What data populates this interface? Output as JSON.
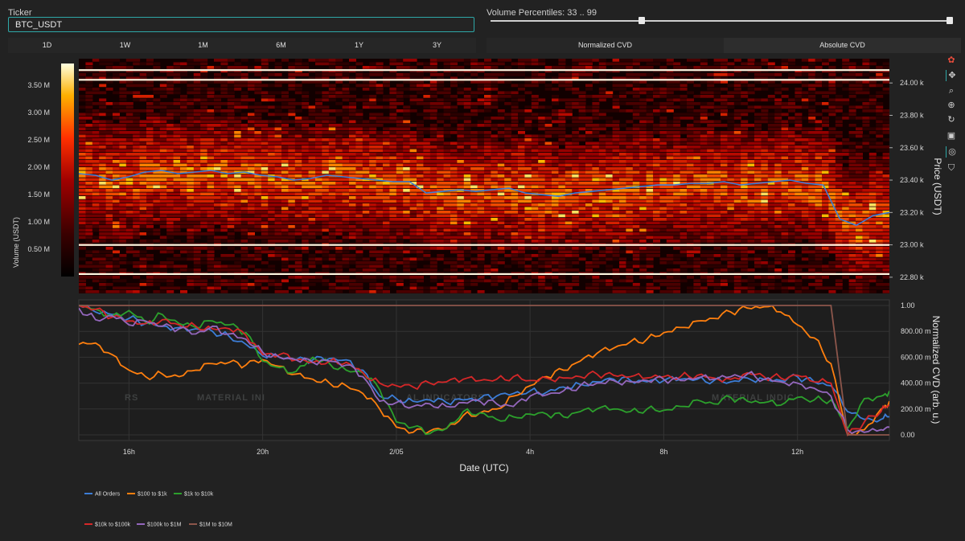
{
  "ticker": {
    "label": "Ticker",
    "value": "BTC_USDT"
  },
  "volume_percentiles": {
    "label": "Volume Percentiles: 33 .. 99",
    "low": 33,
    "high": 99
  },
  "timeframes": [
    "1D",
    "1W",
    "1M",
    "6M",
    "1Y",
    "3Y"
  ],
  "cvd_modes": [
    "Normalized CVD",
    "Absolute CVD"
  ],
  "toolbar": [
    "logo-icon",
    "pan-icon",
    "zoom-icon",
    "zoom-in-icon",
    "reset-icon",
    "download-icon",
    "hover-icon",
    "spike-icon"
  ],
  "watermark": [
    "RS",
    "MATERIAL INI",
    "AL INDICATORS",
    "MATERIAL INDIC"
  ],
  "chart_data": [
    {
      "type": "heatmap",
      "ylabel": "Price (USDT)",
      "colorbar_label": "Volume (USDT)",
      "colorbar_ticks": [
        "0.50 M",
        "1.00 M",
        "1.50 M",
        "2.00 M",
        "2.50 M",
        "3.00 M",
        "3.50 M"
      ],
      "colorbar_range": [
        0,
        3900000
      ],
      "ylim": [
        22700,
        24150
      ],
      "y_ticks": [
        22800,
        23000,
        23200,
        23400,
        23600,
        23800,
        24000
      ],
      "y_tick_labels": [
        "22.80 k",
        "23.00 k",
        "23.20 k",
        "23.40 k",
        "23.60 k",
        "23.80 k",
        "24.00 k"
      ],
      "price_line": {
        "color": "#3c7dd6",
        "x": [
          0,
          0.5,
          1,
          1.5,
          2,
          2.5,
          3,
          3.5,
          4,
          4.5,
          5,
          5.5,
          6,
          6.5,
          7,
          7.5,
          8,
          8.5,
          9,
          9.5,
          10,
          10.5,
          11,
          11.5,
          12,
          12.5,
          13,
          13.5,
          14,
          14.5,
          15,
          15.5,
          16,
          16.5,
          17,
          17.5,
          18,
          18.5,
          19,
          19.5,
          20,
          20.5,
          21,
          21.5,
          22,
          22.5,
          23,
          23.5,
          24,
          24.5
        ],
        "y": [
          23440,
          23430,
          23400,
          23420,
          23450,
          23460,
          23440,
          23450,
          23460,
          23440,
          23450,
          23430,
          23420,
          23400,
          23410,
          23430,
          23420,
          23410,
          23400,
          23390,
          23390,
          23320,
          23330,
          23340,
          23330,
          23340,
          23350,
          23320,
          23310,
          23300,
          23320,
          23330,
          23340,
          23350,
          23360,
          23370,
          23370,
          23380,
          23380,
          23390,
          23370,
          23380,
          23390,
          23400,
          23380,
          23370,
          23160,
          23120,
          23180,
          23200
        ]
      },
      "bright_levels": [
        22820,
        23000,
        24020,
        24080
      ]
    },
    {
      "type": "line",
      "xlabel": "Date (UTC)",
      "ylabel": "Normalized CVD (arb. u.)",
      "ylim": [
        0,
        1.0
      ],
      "y_ticks": [
        0,
        0.2,
        0.4,
        0.6,
        0.8,
        1.0
      ],
      "y_tick_labels": [
        "0.00",
        "200.00 m",
        "400.00 m",
        "600.00 m",
        "800.00 m",
        "1.00"
      ],
      "x_ticks": [
        1.5,
        5.5,
        9.5,
        13.5,
        17.5,
        21.5
      ],
      "x_tick_labels": [
        "16h",
        "20h",
        "2/05",
        "4h",
        "8h",
        "12h"
      ],
      "xlim": [
        0,
        24.25
      ],
      "x": [
        0,
        0.5,
        1,
        1.5,
        2,
        2.5,
        3,
        3.5,
        4,
        4.5,
        5,
        5.5,
        6,
        6.5,
        7,
        7.5,
        8,
        8.5,
        9,
        9.5,
        10,
        10.5,
        11,
        11.5,
        12,
        12.5,
        13,
        13.5,
        14,
        14.5,
        15,
        15.5,
        16,
        16.5,
        17,
        17.5,
        18,
        18.5,
        19,
        19.5,
        20,
        20.5,
        21,
        21.5,
        22,
        22.5,
        23,
        23.5,
        24,
        24.25
      ],
      "series": [
        {
          "name": "All Orders",
          "color": "#3c7dd6",
          "values": [
            1.0,
            0.95,
            0.93,
            0.9,
            0.86,
            0.84,
            0.83,
            0.82,
            0.8,
            0.76,
            0.7,
            0.61,
            0.6,
            0.58,
            0.58,
            0.59,
            0.58,
            0.5,
            0.3,
            0.28,
            0.26,
            0.27,
            0.25,
            0.27,
            0.28,
            0.3,
            0.32,
            0.34,
            0.33,
            0.37,
            0.39,
            0.41,
            0.43,
            0.42,
            0.41,
            0.42,
            0.43,
            0.43,
            0.42,
            0.41,
            0.44,
            0.43,
            0.42,
            0.45,
            0.41,
            0.38,
            0.18,
            0.12,
            0.12,
            0.14
          ]
        },
        {
          "name": "$100 to $1k",
          "color": "#ff7f0e",
          "values": [
            0.7,
            0.71,
            0.62,
            0.5,
            0.45,
            0.47,
            0.45,
            0.5,
            0.55,
            0.56,
            0.54,
            0.58,
            0.53,
            0.47,
            0.43,
            0.4,
            0.38,
            0.32,
            0.2,
            0.06,
            0.02,
            0.03,
            0.05,
            0.15,
            0.17,
            0.2,
            0.3,
            0.38,
            0.45,
            0.5,
            0.57,
            0.63,
            0.67,
            0.72,
            0.74,
            0.79,
            0.83,
            0.88,
            0.9,
            0.95,
            0.98,
            0.99,
            0.95,
            0.85,
            0.75,
            0.55,
            0.0,
            0.04,
            0.2,
            0.26
          ]
        },
        {
          "name": "$1k to $10k",
          "color": "#2ca02c",
          "values": [
            1.0,
            0.97,
            0.92,
            0.96,
            0.87,
            0.93,
            0.86,
            0.83,
            0.88,
            0.85,
            0.79,
            0.57,
            0.52,
            0.49,
            0.6,
            0.55,
            0.5,
            0.48,
            0.35,
            0.1,
            0.06,
            0.01,
            0.05,
            0.18,
            0.17,
            0.12,
            0.14,
            0.16,
            0.16,
            0.14,
            0.18,
            0.2,
            0.2,
            0.18,
            0.2,
            0.19,
            0.22,
            0.27,
            0.24,
            0.29,
            0.26,
            0.25,
            0.23,
            0.29,
            0.27,
            0.27,
            0.05,
            0.28,
            0.3,
            0.34
          ]
        },
        {
          "name": "$10k to $100k",
          "color": "#d62728",
          "values": [
            1.0,
            0.97,
            0.91,
            0.88,
            0.86,
            0.89,
            0.85,
            0.84,
            0.82,
            0.82,
            0.77,
            0.62,
            0.62,
            0.58,
            0.56,
            0.57,
            0.56,
            0.48,
            0.4,
            0.38,
            0.37,
            0.4,
            0.41,
            0.43,
            0.42,
            0.43,
            0.45,
            0.42,
            0.44,
            0.44,
            0.45,
            0.47,
            0.46,
            0.45,
            0.44,
            0.45,
            0.45,
            0.46,
            0.44,
            0.43,
            0.48,
            0.45,
            0.44,
            0.46,
            0.41,
            0.4,
            0.0,
            0.1,
            0.18,
            0.23
          ]
        },
        {
          "name": "$100k to $1M",
          "color": "#9467bd",
          "values": [
            0.98,
            0.89,
            0.92,
            0.85,
            0.88,
            0.84,
            0.82,
            0.78,
            0.84,
            0.78,
            0.74,
            0.64,
            0.6,
            0.58,
            0.56,
            0.57,
            0.54,
            0.45,
            0.26,
            0.25,
            0.22,
            0.24,
            0.22,
            0.25,
            0.26,
            0.24,
            0.22,
            0.3,
            0.31,
            0.34,
            0.38,
            0.4,
            0.42,
            0.41,
            0.42,
            0.43,
            0.42,
            0.44,
            0.43,
            0.45,
            0.47,
            0.43,
            0.41,
            0.4,
            0.36,
            0.3,
            0.04,
            0.02,
            0.04,
            0.06
          ]
        },
        {
          "name": "$1M to $10M",
          "color": "#8c564b",
          "values": [
            1.0,
            1.0,
            1.0,
            1.0,
            1.0,
            1.0,
            1.0,
            1.0,
            1.0,
            1.0,
            1.0,
            1.0,
            1.0,
            1.0,
            1.0,
            1.0,
            1.0,
            1.0,
            1.0,
            1.0,
            1.0,
            1.0,
            1.0,
            1.0,
            1.0,
            1.0,
            1.0,
            1.0,
            1.0,
            1.0,
            1.0,
            1.0,
            1.0,
            1.0,
            1.0,
            1.0,
            1.0,
            1.0,
            1.0,
            1.0,
            1.0,
            1.0,
            1.0,
            1.0,
            1.0,
            1.0,
            0.0,
            0.0,
            0.0,
            0.0
          ]
        }
      ],
      "legend_placement": "bottom-left"
    }
  ]
}
